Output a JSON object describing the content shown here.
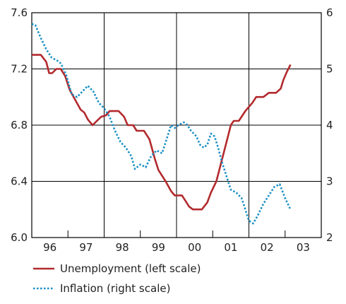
{
  "chart_data": {
    "type": "line",
    "title": "",
    "xlabel": "",
    "ylabel": "",
    "x_categories": [
      "96",
      "97",
      "98",
      "99",
      "00",
      "01",
      "02",
      "03"
    ],
    "xlim": [
      1996.0,
      2004.0
    ],
    "ylim_left": [
      6.0,
      7.6
    ],
    "ylim_right": [
      2,
      6
    ],
    "left_ticks": [
      "6.0",
      "6.4",
      "6.8",
      "7.2",
      "7.6"
    ],
    "right_ticks": [
      "2",
      "3",
      "4",
      "5",
      "6"
    ],
    "grid": "vertical lines at year boundaries, horizontal lines at left-axis ticks",
    "legend_position": "bottom-left",
    "series": [
      {
        "name": "Unemployment (left scale)",
        "axis": "left",
        "color": "#b22a2e",
        "style": "solid",
        "points": [
          [
            1996.0,
            7.3
          ],
          [
            1996.25,
            7.3
          ],
          [
            1996.4,
            7.25
          ],
          [
            1996.48,
            7.17
          ],
          [
            1996.56,
            7.17
          ],
          [
            1996.68,
            7.2
          ],
          [
            1996.8,
            7.2
          ],
          [
            1996.92,
            7.15
          ],
          [
            1997.05,
            7.05
          ],
          [
            1997.2,
            6.98
          ],
          [
            1997.35,
            6.91
          ],
          [
            1997.45,
            6.89
          ],
          [
            1997.55,
            6.84
          ],
          [
            1997.68,
            6.8
          ],
          [
            1997.8,
            6.83
          ],
          [
            1997.92,
            6.86
          ],
          [
            1998.05,
            6.87
          ],
          [
            1998.15,
            6.9
          ],
          [
            1998.4,
            6.9
          ],
          [
            1998.55,
            6.86
          ],
          [
            1998.65,
            6.8
          ],
          [
            1998.8,
            6.8
          ],
          [
            1998.9,
            6.76
          ],
          [
            1999.1,
            6.76
          ],
          [
            1999.25,
            6.7
          ],
          [
            1999.4,
            6.56
          ],
          [
            1999.5,
            6.48
          ],
          [
            1999.7,
            6.4
          ],
          [
            1999.85,
            6.33
          ],
          [
            1999.95,
            6.3
          ],
          [
            2000.15,
            6.3
          ],
          [
            2000.35,
            6.22
          ],
          [
            2000.45,
            6.2
          ],
          [
            2000.7,
            6.2
          ],
          [
            2000.85,
            6.25
          ],
          [
            2000.95,
            6.32
          ],
          [
            2001.1,
            6.4
          ],
          [
            2001.25,
            6.55
          ],
          [
            2001.4,
            6.7
          ],
          [
            2001.5,
            6.8
          ],
          [
            2001.58,
            6.83
          ],
          [
            2001.72,
            6.83
          ],
          [
            2001.9,
            6.9
          ],
          [
            2002.1,
            6.96
          ],
          [
            2002.2,
            7.0
          ],
          [
            2002.4,
            7.0
          ],
          [
            2002.55,
            7.03
          ],
          [
            2002.75,
            7.03
          ],
          [
            2002.88,
            7.06
          ],
          [
            2002.95,
            7.12
          ],
          [
            2003.05,
            7.18
          ],
          [
            2003.15,
            7.23
          ]
        ]
      },
      {
        "name": "Inflation (right scale)",
        "axis": "right",
        "color": "#1a8fc4",
        "style": "dotted",
        "points": [
          [
            1996.0,
            5.8
          ],
          [
            1996.1,
            5.78
          ],
          [
            1996.25,
            5.55
          ],
          [
            1996.4,
            5.35
          ],
          [
            1996.55,
            5.2
          ],
          [
            1996.7,
            5.15
          ],
          [
            1996.8,
            5.1
          ],
          [
            1996.95,
            4.9
          ],
          [
            1997.1,
            4.55
          ],
          [
            1997.25,
            4.5
          ],
          [
            1997.4,
            4.6
          ],
          [
            1997.55,
            4.7
          ],
          [
            1997.7,
            4.6
          ],
          [
            1997.85,
            4.4
          ],
          [
            1998.0,
            4.3
          ],
          [
            1998.15,
            4.15
          ],
          [
            1998.3,
            3.9
          ],
          [
            1998.45,
            3.7
          ],
          [
            1998.6,
            3.6
          ],
          [
            1998.75,
            3.45
          ],
          [
            1998.85,
            3.22
          ],
          [
            1999.0,
            3.3
          ],
          [
            1999.15,
            3.25
          ],
          [
            1999.3,
            3.45
          ],
          [
            1999.45,
            3.55
          ],
          [
            1999.6,
            3.5
          ],
          [
            1999.75,
            3.8
          ],
          [
            1999.85,
            4.0
          ],
          [
            1999.95,
            3.95
          ],
          [
            2000.05,
            4.0
          ],
          [
            2000.2,
            4.05
          ],
          [
            2000.3,
            4.0
          ],
          [
            2000.4,
            3.9
          ],
          [
            2000.55,
            3.8
          ],
          [
            2000.65,
            3.65
          ],
          [
            2000.75,
            3.6
          ],
          [
            2000.85,
            3.65
          ],
          [
            2000.95,
            3.85
          ],
          [
            2001.05,
            3.8
          ],
          [
            2001.15,
            3.6
          ],
          [
            2001.25,
            3.35
          ],
          [
            2001.4,
            3.05
          ],
          [
            2001.5,
            2.85
          ],
          [
            2001.65,
            2.8
          ],
          [
            2001.8,
            2.7
          ],
          [
            2001.9,
            2.5
          ],
          [
            2002.0,
            2.3
          ],
          [
            2002.12,
            2.25
          ],
          [
            2002.25,
            2.4
          ],
          [
            2002.4,
            2.6
          ],
          [
            2002.55,
            2.75
          ],
          [
            2002.7,
            2.9
          ],
          [
            2002.85,
            2.95
          ],
          [
            2003.0,
            2.7
          ],
          [
            2003.15,
            2.5
          ]
        ]
      }
    ]
  },
  "legend": [
    {
      "label": "Unemployment (left scale)",
      "color": "#b22a2e",
      "style": "solid"
    },
    {
      "label": "Inflation (right scale)",
      "color": "#1a8fc4",
      "style": "dotted"
    }
  ]
}
